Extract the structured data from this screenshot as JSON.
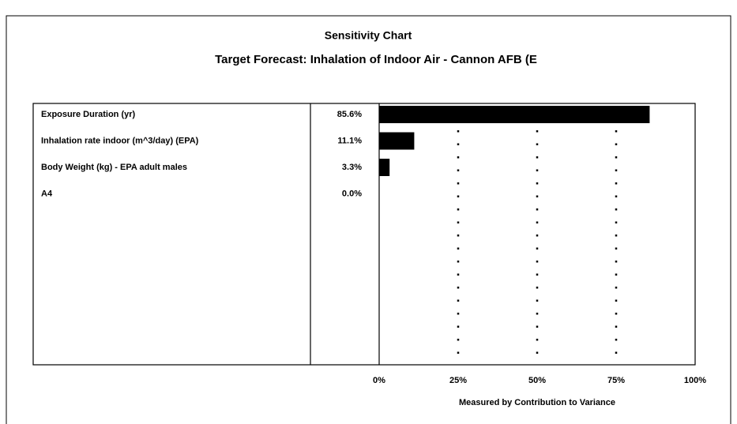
{
  "chart_data": {
    "type": "bar",
    "orientation": "horizontal",
    "title": "Sensitivity Chart",
    "subtitle": "Target Forecast:  Inhalation of Indoor Air - Cannon AFB (E",
    "categories": [
      "Exposure Duration (yr)",
      "Inhalation rate indoor (m^3/day) (EPA)",
      "Body Weight (kg) - EPA adult males",
      "A4"
    ],
    "values": [
      85.6,
      11.1,
      3.3,
      0.0
    ],
    "value_labels": [
      "85.6%",
      "11.1%",
      "3.3%",
      "0.0%"
    ],
    "color": "#000000",
    "xlim": [
      0,
      100
    ],
    "xticks": [
      {
        "value": 0,
        "label": "0%"
      },
      {
        "value": 25,
        "label": "25%"
      },
      {
        "value": 50,
        "label": "50%"
      },
      {
        "value": 75,
        "label": "75%"
      },
      {
        "value": 100,
        "label": "100%"
      }
    ],
    "x_label": "Measured by Contribution to Variance",
    "grid": true
  }
}
